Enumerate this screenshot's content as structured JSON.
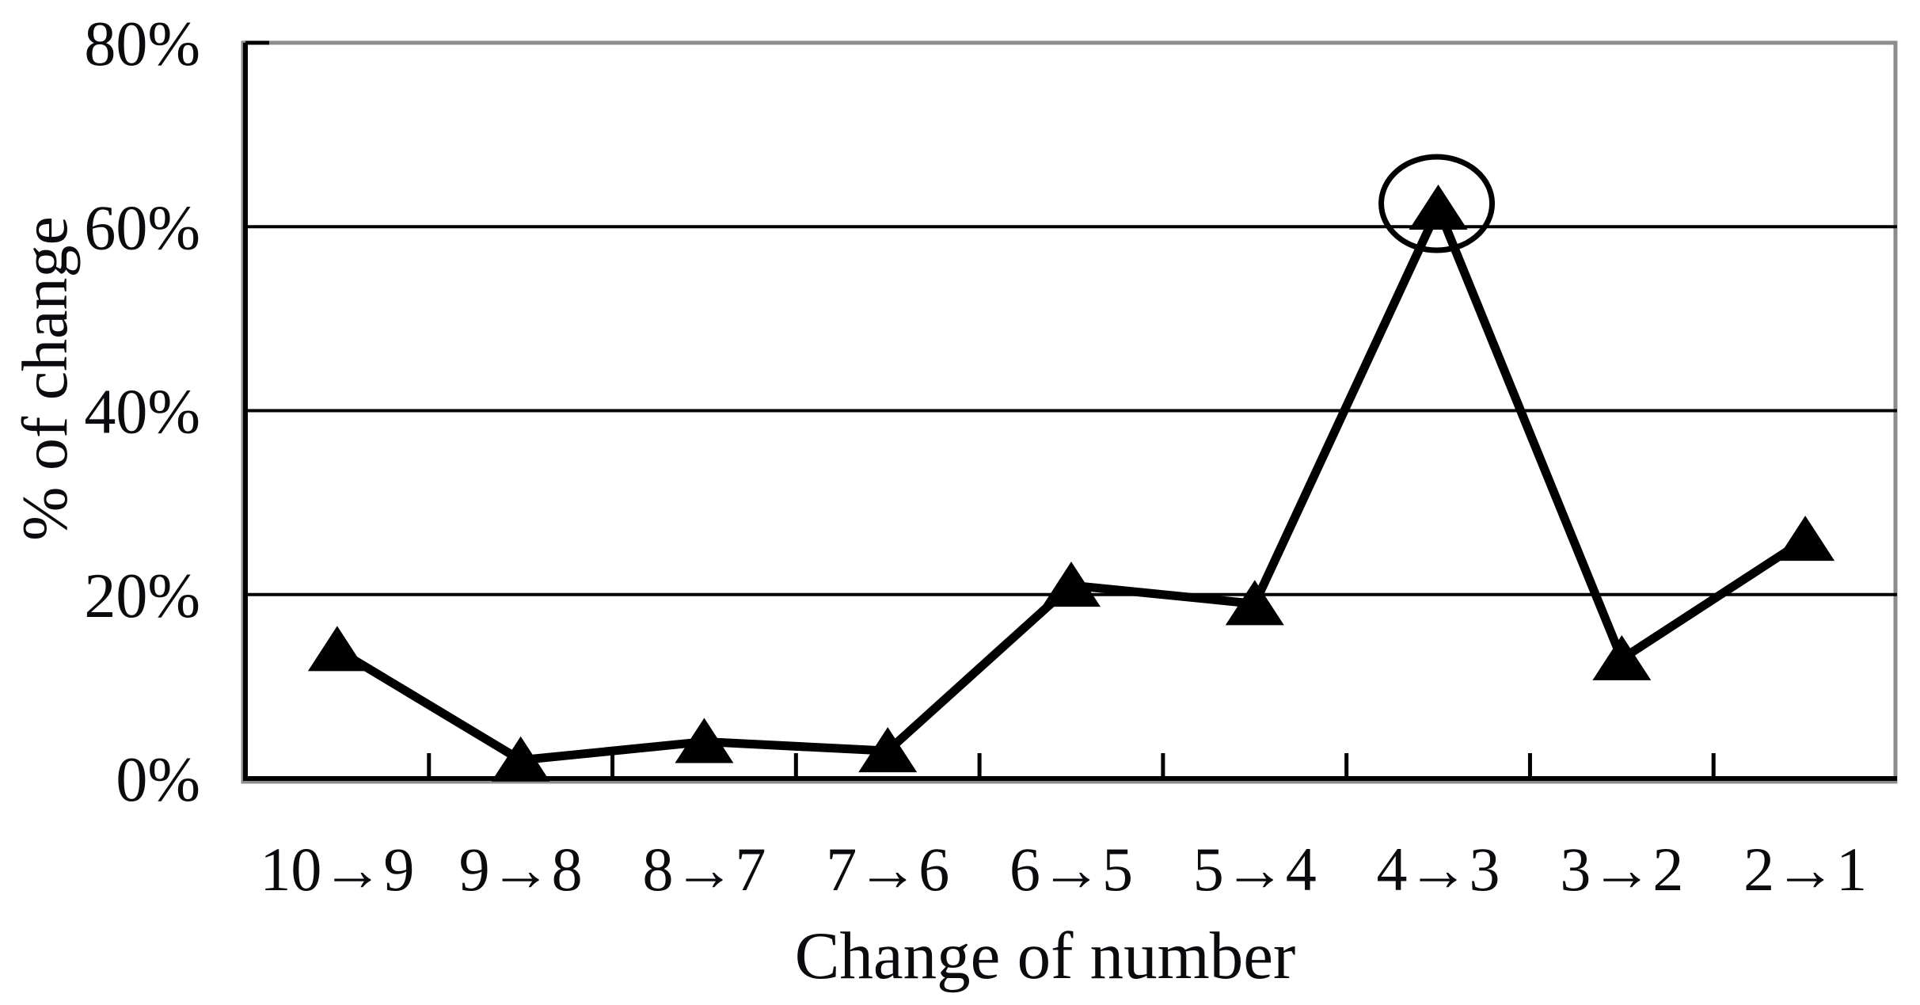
{
  "chart_data": {
    "type": "line",
    "title": "",
    "xlabel": "Change of number",
    "ylabel": "% of change",
    "categories": [
      "10→9",
      "9→8",
      "8→7",
      "7→6",
      "6→5",
      "5→4",
      "4→3",
      "3→2",
      "2→1"
    ],
    "series": [
      {
        "name": "% of change",
        "values": [
          14,
          2,
          4,
          3,
          21,
          19,
          62,
          13,
          26
        ],
        "marker": "filled-triangle",
        "color": "#000000"
      }
    ],
    "ylim": [
      0,
      80
    ],
    "ytick_step": 20,
    "ytick_labels": [
      "0%",
      "20%",
      "40%",
      "60%",
      "80%"
    ],
    "grid": "horizontal",
    "legend": "none",
    "annotation": {
      "shape": "circle",
      "circled_category": "4→3",
      "circled_value": 62
    },
    "colors": {
      "line": "#000000",
      "marker": "#000000",
      "gridline": "#000000",
      "axis": "#000000",
      "plot_border": "#8c8c8c",
      "text": "#0b0b0f",
      "background": "#ffffff"
    }
  }
}
